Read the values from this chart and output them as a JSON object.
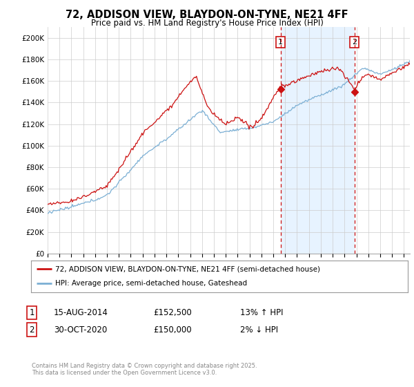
{
  "title": "72, ADDISON VIEW, BLAYDON-ON-TYNE, NE21 4FF",
  "subtitle": "Price paid vs. HM Land Registry's House Price Index (HPI)",
  "ylim": [
    0,
    210000
  ],
  "yticks": [
    0,
    20000,
    40000,
    60000,
    80000,
    100000,
    120000,
    140000,
    160000,
    180000,
    200000
  ],
  "ytick_labels": [
    "£0",
    "£20K",
    "£40K",
    "£60K",
    "£80K",
    "£100K",
    "£120K",
    "£140K",
    "£160K",
    "£180K",
    "£200K"
  ],
  "hpi_color": "#7bafd4",
  "price_color": "#cc1111",
  "vline_color": "#cc1111",
  "shade_color": "#ddeeff",
  "sale1_date": 2014.62,
  "sale1_price": 152500,
  "sale1_label": "1",
  "sale2_date": 2020.83,
  "sale2_price": 150000,
  "sale2_label": "2",
  "legend_line1": "72, ADDISON VIEW, BLAYDON-ON-TYNE, NE21 4FF (semi-detached house)",
  "legend_line2": "HPI: Average price, semi-detached house, Gateshead",
  "table_row1_num": "1",
  "table_row1_date": "15-AUG-2014",
  "table_row1_price": "£152,500",
  "table_row1_hpi": "13% ↑ HPI",
  "table_row2_num": "2",
  "table_row2_date": "30-OCT-2020",
  "table_row2_price": "£150,000",
  "table_row2_hpi": "2% ↓ HPI",
  "footer": "Contains HM Land Registry data © Crown copyright and database right 2025.\nThis data is licensed under the Open Government Licence v3.0.",
  "background_color": "#ffffff",
  "grid_color": "#cccccc",
  "xlim_left": 1995.0,
  "xlim_right": 2025.5
}
